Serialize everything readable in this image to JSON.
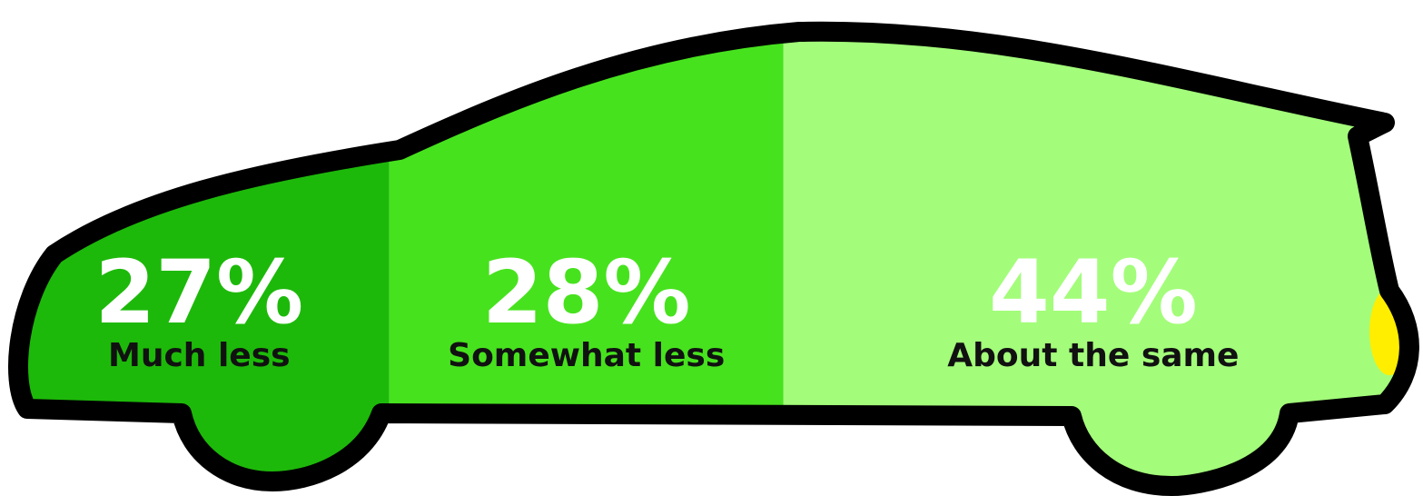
{
  "chart_data": {
    "type": "car",
    "categories": [
      "Much less",
      "Somewhat less",
      "About the same"
    ],
    "values": [
      27,
      28,
      44
    ],
    "value_labels": [
      "27%",
      "28%",
      "44%"
    ],
    "colors": [
      "#1db90a",
      "#47e21e",
      "#a3fd7a"
    ]
  }
}
